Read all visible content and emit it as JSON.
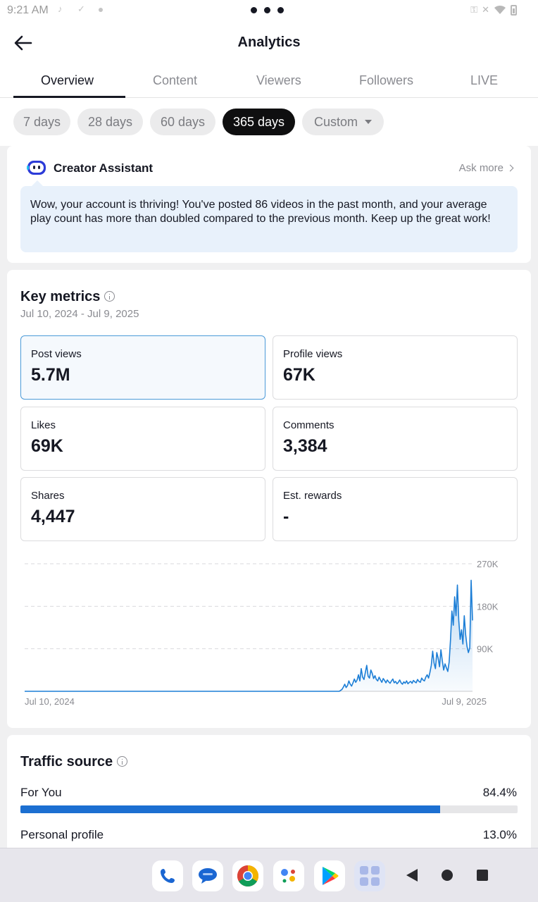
{
  "status": {
    "time": "9:21 AM"
  },
  "header": {
    "title": "Analytics"
  },
  "tabs": [
    {
      "label": "Overview",
      "active": true
    },
    {
      "label": "Content"
    },
    {
      "label": "Viewers"
    },
    {
      "label": "Followers"
    },
    {
      "label": "LIVE"
    }
  ],
  "ranges": [
    {
      "label": "7 days"
    },
    {
      "label": "28 days"
    },
    {
      "label": "60 days"
    },
    {
      "label": "365 days",
      "active": true
    },
    {
      "label": "Custom"
    }
  ],
  "assistant": {
    "name": "Creator Assistant",
    "ask_more": "Ask more",
    "message": "Wow, your account is thriving! You've posted 86 videos in the past month, and your average play count has more than doubled compared to the previous month. Keep up the great work!"
  },
  "key_metrics": {
    "title": "Key metrics",
    "date_range": "Jul 10, 2024 - Jul 9, 2025",
    "tiles": [
      {
        "label": "Post views",
        "value": "5.7M"
      },
      {
        "label": "Profile views",
        "value": "67K"
      },
      {
        "label": "Likes",
        "value": "69K"
      },
      {
        "label": "Comments",
        "value": "3,384"
      },
      {
        "label": "Shares",
        "value": "4,447"
      },
      {
        "label": "Est. rewards",
        "value": "-"
      }
    ]
  },
  "chart_data": {
    "type": "area",
    "x_start": "Jul 10, 2024",
    "x_end": "Jul 9, 2025",
    "xtick_labels": [
      "Jul 10, 2024",
      "Jul 9, 2025"
    ],
    "ytick_labels": [
      "90K",
      "180K",
      "270K"
    ],
    "ylim": [
      0,
      270000
    ],
    "grid": true,
    "color": "#1c7ed6",
    "series": [
      {
        "values": [
          0,
          0,
          0,
          0,
          0,
          0,
          0,
          0,
          0,
          0,
          0,
          0,
          0,
          0,
          0,
          0,
          0,
          0,
          0,
          0,
          0,
          0,
          0,
          0,
          0,
          0,
          0,
          0,
          0,
          0,
          0,
          0,
          0,
          0,
          0,
          0,
          0,
          0,
          0,
          0,
          0,
          0,
          0,
          0,
          0,
          0,
          0,
          0,
          0,
          0,
          0,
          0,
          0,
          0,
          0,
          0,
          0,
          0,
          0,
          0,
          0,
          0,
          0,
          0,
          0,
          0,
          0,
          0,
          0,
          0,
          0,
          0,
          0,
          0,
          0,
          0,
          0,
          0,
          0,
          0,
          0,
          0,
          0,
          0,
          0,
          0,
          0,
          0,
          0,
          0,
          0,
          0,
          0,
          0,
          0,
          0,
          0,
          0,
          0,
          0,
          0,
          0,
          0,
          0,
          0,
          0,
          0,
          0,
          0,
          0,
          0,
          0,
          0,
          0,
          0,
          0,
          0,
          0,
          0,
          0,
          0,
          0,
          0,
          0,
          0,
          0,
          0,
          0,
          0,
          0,
          0,
          0,
          0,
          0,
          0,
          0,
          0,
          0,
          0,
          0,
          0,
          0,
          0,
          0,
          0,
          0,
          0,
          0,
          0,
          0,
          0,
          0,
          0,
          0,
          0,
          0,
          0,
          0,
          0,
          0,
          0,
          0,
          0,
          0,
          0,
          0,
          0,
          0,
          0,
          0,
          0,
          0,
          0,
          0,
          0,
          0,
          0,
          0,
          0,
          0,
          0,
          0,
          0,
          0,
          0,
          0,
          0,
          0,
          0,
          0,
          0,
          0,
          0,
          0,
          0,
          0,
          0,
          0,
          0,
          0,
          0,
          0,
          0,
          0,
          0,
          0,
          0,
          0,
          0,
          0,
          0,
          0,
          0,
          0,
          0,
          0,
          0,
          0,
          0,
          0,
          0,
          0,
          0,
          0,
          0,
          0,
          0,
          0,
          0,
          0,
          2000,
          4000,
          9000,
          15000,
          8000,
          12000,
          22000,
          15000,
          11000,
          18000,
          26000,
          19000,
          24000,
          35000,
          22000,
          48000,
          30000,
          25000,
          40000,
          55000,
          32000,
          28000,
          45000,
          38000,
          27000,
          33000,
          25000,
          22000,
          30000,
          24000,
          19000,
          27000,
          23000,
          18000,
          24000,
          20000,
          17000,
          22000,
          26000,
          18000,
          21000,
          16000,
          19000,
          24000,
          18000,
          15000,
          20000,
          17000,
          22000,
          16000,
          19000,
          21000,
          17000,
          23000,
          20000,
          18000,
          25000,
          21000,
          19000,
          28000,
          24000,
          22000,
          30000,
          35000,
          28000,
          40000,
          55000,
          85000,
          60000,
          48000,
          82000,
          70000,
          52000,
          88000,
          65000,
          45000,
          58000,
          50000,
          42000,
          62000,
          110000,
          170000,
          140000,
          200000,
          160000,
          225000,
          150000,
          110000,
          130000,
          100000,
          160000,
          120000,
          95000,
          82000,
          92000,
          235000,
          150000
        ]
      }
    ]
  },
  "traffic": {
    "title": "Traffic source",
    "items": [
      {
        "label": "For You",
        "pct": "84.4%",
        "value": 84.4
      },
      {
        "label": "Personal profile",
        "pct": "13.0%",
        "value": 13.0
      }
    ]
  }
}
